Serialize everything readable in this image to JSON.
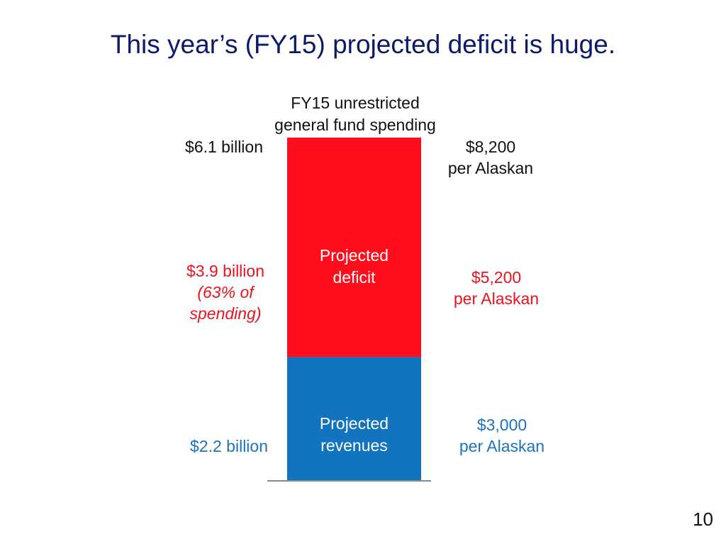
{
  "slide": {
    "title": "This year’s (FY15) projected deficit is huge.",
    "page_number": "10"
  },
  "colors": {
    "title": "#0b1a6b",
    "deficit": "#ff0d1c",
    "revenues": "#1273be",
    "deficit_text": "#e8141e",
    "revenues_text": "#1c73bd"
  },
  "chart_data": {
    "type": "bar",
    "stacked": true,
    "title_line1": "FY15 unrestricted",
    "title_line2": "general fund spending",
    "unit": "billion",
    "categories": [
      "FY15"
    ],
    "ylim": [
      0,
      6.1
    ],
    "total": {
      "label": "$6.1 billion",
      "per_capita_line1": "$8,200",
      "per_capita_line2": "per Alaskan"
    },
    "series": [
      {
        "key": "revenues",
        "name_line1": "Projected",
        "name_line2": "revenues",
        "values": [
          2.2
        ],
        "label": "$2.2 billion",
        "per_capita_line1": "$3,000",
        "per_capita_line2": "per Alaskan"
      },
      {
        "key": "deficit",
        "name_line1": "Projected",
        "name_line2": "deficit",
        "values": [
          3.9
        ],
        "label": "$3.9 billion",
        "share_line1": "(63% of",
        "share_line2": "spending)",
        "per_capita_line1": "$5,200",
        "per_capita_line2": "per Alaskan"
      }
    ]
  }
}
